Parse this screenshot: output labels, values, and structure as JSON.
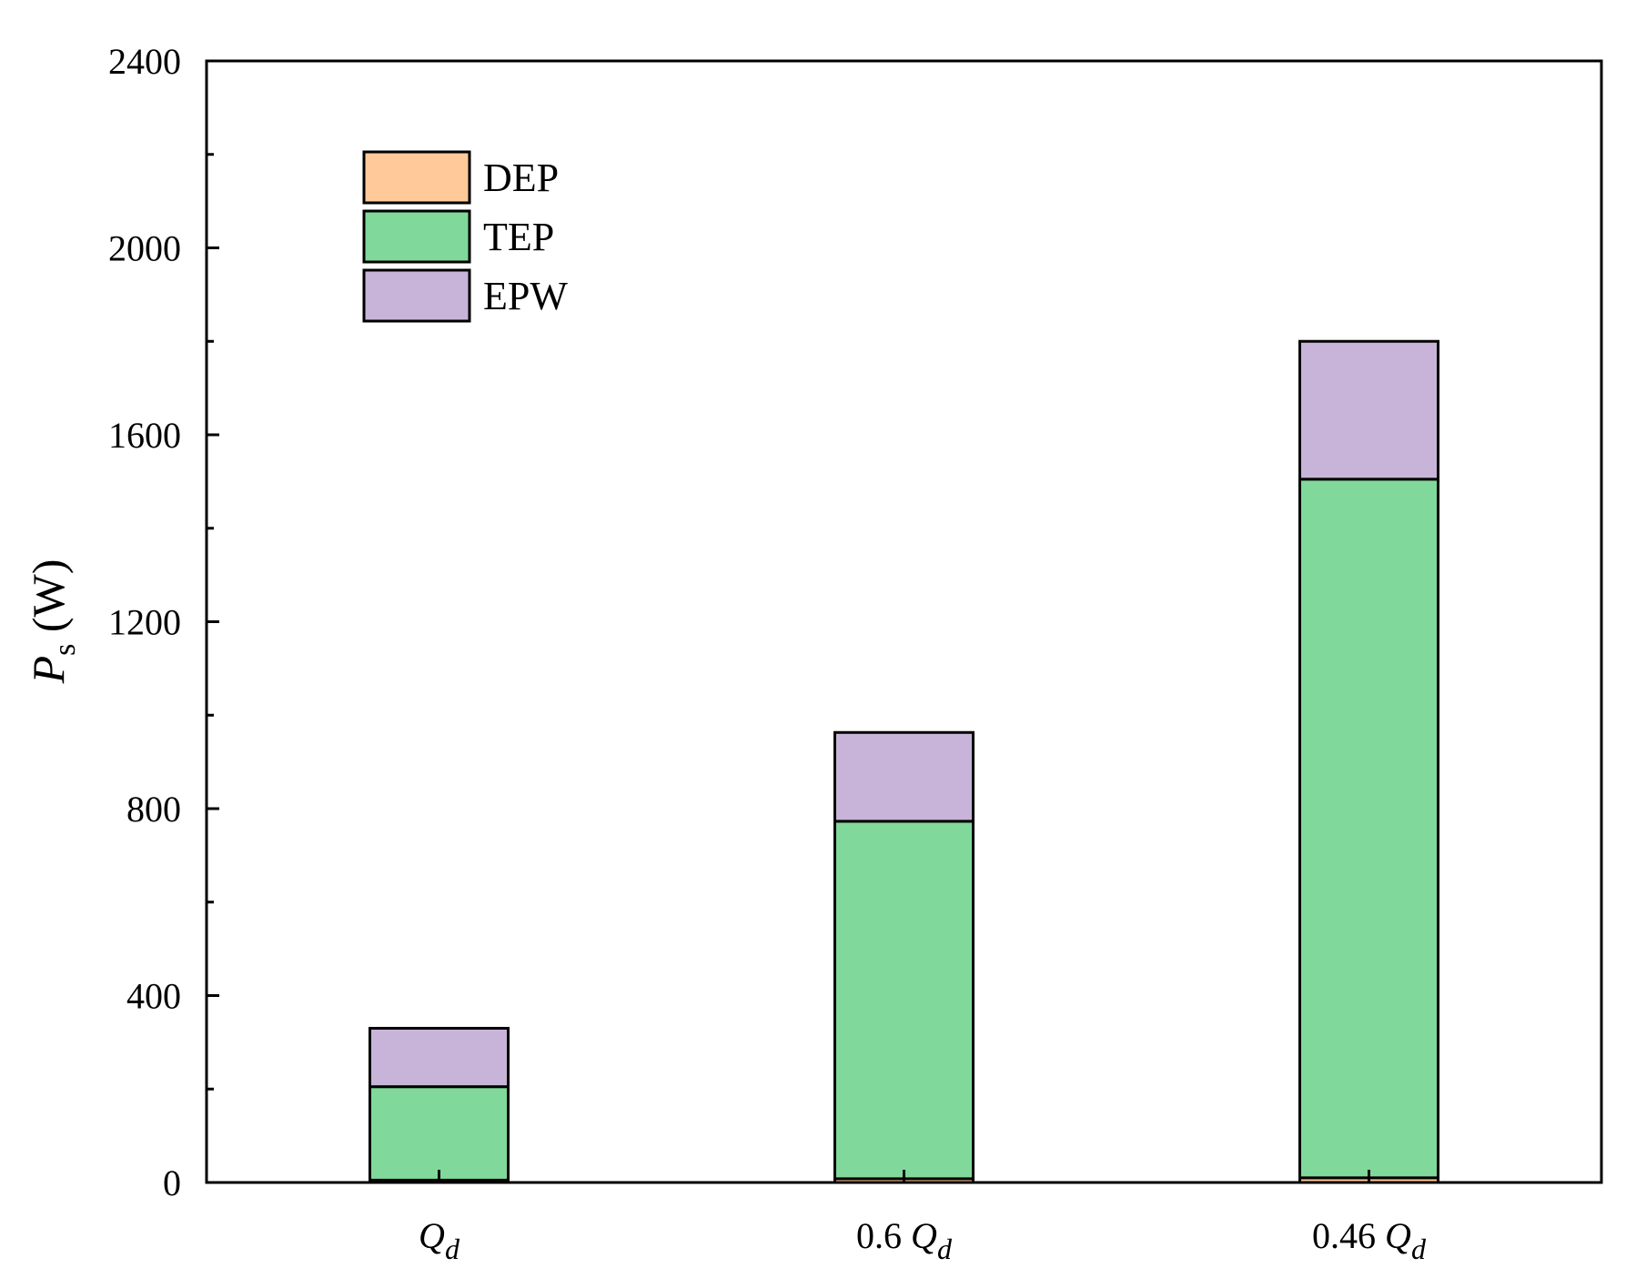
{
  "chart_data": {
    "type": "bar",
    "stacked": true,
    "categories": [
      {
        "main": "",
        "italic": "Q",
        "sub": "d"
      },
      {
        "main": "0.6 ",
        "italic": "Q",
        "sub": "d"
      },
      {
        "main": "0.46 ",
        "italic": "Q",
        "sub": "d"
      }
    ],
    "series": [
      {
        "name": "DEP",
        "color": "#FFC999",
        "values": [
          5,
          8,
          10
        ]
      },
      {
        "name": "TEP",
        "color": "#80D99A",
        "values": [
          200,
          765,
          1495
        ]
      },
      {
        "name": "EPW",
        "color": "#C8B4D8",
        "values": [
          125,
          190,
          295
        ]
      }
    ],
    "ylabel": {
      "symbol": "P",
      "sub": "s",
      "unit": " (W)"
    },
    "ylim": [
      0,
      2400
    ],
    "yticks": [
      0,
      400,
      800,
      1200,
      1600,
      2000,
      2400
    ],
    "grid": false,
    "legend_position": "top-left"
  }
}
